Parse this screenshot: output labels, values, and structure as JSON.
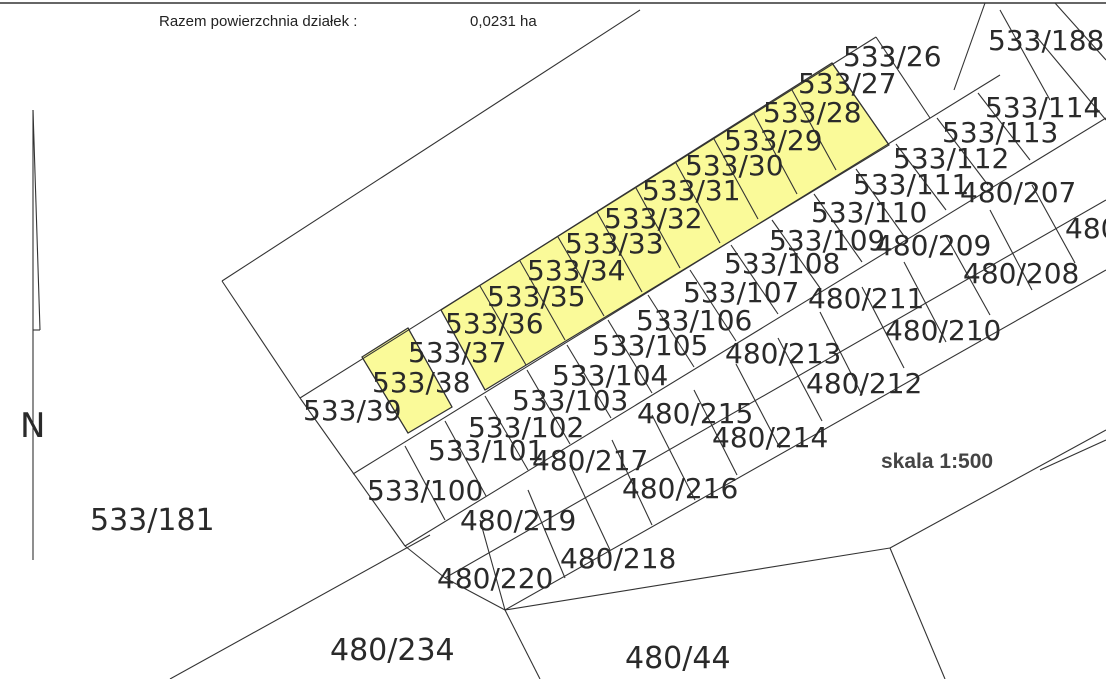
{
  "header": {
    "area_label": "Razem powierzchnia działek :",
    "area_value": "0,0231 ha"
  },
  "scale_label": "skala 1:500",
  "north_label": "N",
  "colors": {
    "highlight": "#fafa99",
    "line": "#333333",
    "text": "#2a2a2a"
  },
  "parcels": [
    "533/39",
    "533/38",
    "533/37",
    "533/36",
    "533/35",
    "533/34",
    "533/33",
    "533/32",
    "533/31",
    "533/30",
    "533/29",
    "533/28",
    "533/27",
    "533/26",
    "533/100",
    "533/101",
    "533/102",
    "533/103",
    "533/104",
    "533/105",
    "533/106",
    "533/107",
    "533/108",
    "533/109",
    "533/110",
    "533/111",
    "533/112",
    "533/113",
    "533/114",
    "480/220",
    "480/219",
    "480/218",
    "480/217",
    "480/216",
    "480/215",
    "480/214",
    "480/213",
    "480/212",
    "480/211",
    "480/210",
    "480/209",
    "480/208",
    "480/207",
    "480",
    "533/181",
    "480/234",
    "480/44",
    "533/188"
  ],
  "highlighted_parcels": [
    "533/38",
    "533/36",
    "533/35",
    "533/34",
    "533/33",
    "533/32",
    "533/31",
    "533/30",
    "533/29",
    "533/28",
    "533/27"
  ]
}
